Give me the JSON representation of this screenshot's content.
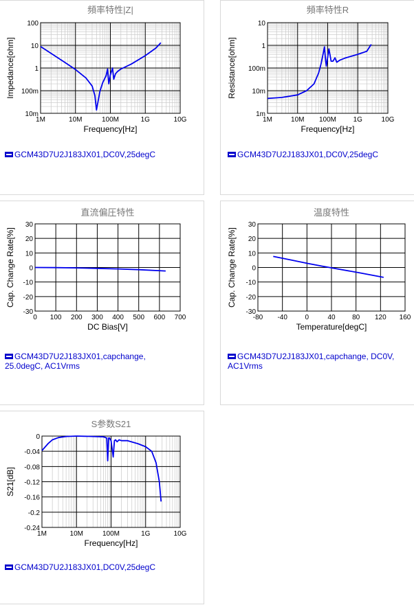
{
  "chart_data": [
    {
      "type": "line",
      "title": "頻率特性|Z|",
      "xlabel": "Frequency[Hz]",
      "ylabel": "Impedance[ohm]",
      "x_scale": "log",
      "y_scale": "log",
      "xlim": [
        1000000,
        10000000000
      ],
      "ylim": [
        0.01,
        100
      ],
      "x_ticks": [
        1000000,
        10000000,
        100000000,
        1000000000,
        10000000000
      ],
      "x_tick_labels": [
        "1M",
        "10M",
        "100M",
        "1G",
        "10G"
      ],
      "y_ticks": [
        0.01,
        0.1,
        1,
        10,
        100
      ],
      "y_tick_labels": [
        "10m",
        "100m",
        "1",
        "10",
        "100"
      ],
      "grid": true,
      "series": [
        {
          "name": "GCM43D7U2J183JX01,DC0V,25degC",
          "color": "#0000ee",
          "x": [
            1000000,
            2000000,
            5000000,
            10000000,
            20000000,
            30000000,
            36000000,
            40000000,
            50000000,
            60000000,
            75000000,
            83000000,
            90000000,
            100000000,
            115000000,
            125000000,
            140000000,
            160000000,
            200000000,
            400000000,
            1000000000,
            2000000000,
            2800000000
          ],
          "values": [
            8.8,
            4.4,
            1.75,
            0.85,
            0.36,
            0.16,
            0.06,
            0.014,
            0.09,
            0.22,
            0.45,
            0.9,
            0.2,
            0.5,
            1.0,
            0.32,
            0.55,
            0.7,
            0.9,
            1.5,
            3.5,
            7.5,
            13
          ]
        }
      ]
    },
    {
      "type": "line",
      "title": "頻率特性R",
      "xlabel": "Frequency[Hz]",
      "ylabel": "Resistance[ohm]",
      "x_scale": "log",
      "y_scale": "log",
      "xlim": [
        1000000,
        10000000000
      ],
      "ylim": [
        0.001,
        10
      ],
      "x_ticks": [
        1000000,
        10000000,
        100000000,
        1000000000,
        10000000000
      ],
      "x_tick_labels": [
        "1M",
        "10M",
        "100M",
        "1G",
        "10G"
      ],
      "y_ticks": [
        0.001,
        0.01,
        0.1,
        1,
        10
      ],
      "y_tick_labels": [
        "1m",
        "10m",
        "100m",
        "1",
        "10"
      ],
      "grid": true,
      "series": [
        {
          "name": "GCM43D7U2J183JX01,DC0V,25degC",
          "color": "#0000ee",
          "x": [
            1000000,
            3000000,
            10000000,
            20000000,
            35000000,
            50000000,
            60000000,
            70000000,
            78000000,
            83000000,
            90000000,
            100000000,
            110000000,
            130000000,
            150000000,
            175000000,
            200000000,
            250000000,
            400000000,
            1000000000,
            2000000000,
            2800000000
          ],
          "values": [
            0.0045,
            0.005,
            0.0065,
            0.01,
            0.02,
            0.06,
            0.15,
            0.4,
            0.85,
            0.3,
            0.12,
            0.3,
            0.7,
            0.2,
            0.2,
            0.28,
            0.18,
            0.22,
            0.28,
            0.4,
            0.55,
            1.1
          ]
        }
      ]
    },
    {
      "type": "line",
      "title": "直流偏圧特性",
      "xlabel": "DC Bias[V]",
      "ylabel": "Cap. Change Rate[%]",
      "xlim": [
        0,
        700
      ],
      "ylim": [
        -30,
        30
      ],
      "x_ticks": [
        0,
        100,
        200,
        300,
        400,
        500,
        600,
        700
      ],
      "x_tick_labels": [
        "0",
        "100",
        "200",
        "300",
        "400",
        "500",
        "600",
        "700"
      ],
      "y_ticks": [
        -30,
        -20,
        -10,
        0,
        10,
        20,
        30
      ],
      "y_tick_labels": [
        "-30",
        "-20",
        "-10",
        "0",
        "10",
        "20",
        "30"
      ],
      "grid": true,
      "series": [
        {
          "name": "GCM43D7U2J183JX01,capchange, 25.0degC, AC1Vrms",
          "color": "#0000ee",
          "x": [
            0,
            100,
            200,
            300,
            400,
            500,
            630
          ],
          "values": [
            0,
            -0.1,
            -0.3,
            -0.6,
            -1.0,
            -1.5,
            -2.4
          ]
        }
      ]
    },
    {
      "type": "line",
      "title": "温度特性",
      "xlabel": "Temperature[degC]",
      "ylabel": "Cap. Change Rate[%]",
      "xlim": [
        -80,
        160
      ],
      "ylim": [
        -30,
        30
      ],
      "x_ticks": [
        -80,
        -40,
        0,
        40,
        80,
        120,
        160
      ],
      "x_tick_labels": [
        "-80",
        "-40",
        "0",
        "40",
        "80",
        "120",
        "160"
      ],
      "y_ticks": [
        -30,
        -20,
        -10,
        0,
        10,
        20,
        30
      ],
      "y_tick_labels": [
        "-30",
        "-20",
        "-10",
        "0",
        "10",
        "20",
        "30"
      ],
      "grid": true,
      "series": [
        {
          "name": "GCM43D7U2J183JX01,capchange, DC0V, AC1Vrms",
          "color": "#0000ee",
          "x": [
            -55,
            -25,
            0,
            25,
            50,
            85,
            125
          ],
          "values": [
            7.6,
            5.1,
            2.9,
            0.9,
            -1.0,
            -3.6,
            -6.8
          ]
        }
      ]
    },
    {
      "type": "line",
      "title": "S参数S21",
      "xlabel": "Frequency[Hz]",
      "ylabel": "S21[dB]",
      "x_scale": "log",
      "xlim": [
        1000000,
        10000000000
      ],
      "ylim": [
        -0.24,
        0
      ],
      "x_ticks": [
        1000000,
        10000000,
        100000000,
        1000000000,
        10000000000
      ],
      "x_tick_labels": [
        "1M",
        "10M",
        "100M",
        "1G",
        "10G"
      ],
      "y_ticks": [
        0,
        -0.04,
        -0.08,
        -0.12,
        -0.16,
        -0.2,
        -0.24
      ],
      "y_tick_labels": [
        "0",
        "-0.04",
        "-0.08",
        "-0.12",
        "-0.16",
        "-0.2",
        "-0.24"
      ],
      "grid": true,
      "series": [
        {
          "name": "GCM43D7U2J183JX01,DC0V,25degC",
          "color": "#0000ee",
          "x": [
            1000000,
            1500000,
            2000000,
            3000000,
            5000000,
            10000000,
            30000000,
            60000000,
            75000000,
            80000000,
            85000000,
            90000000,
            100000000,
            115000000,
            125000000,
            135000000,
            150000000,
            170000000,
            200000000,
            300000000,
            600000000,
            1000000000,
            1500000000,
            2000000000,
            2500000000,
            2800000000
          ],
          "values": [
            -0.038,
            -0.02,
            -0.01,
            -0.004,
            -0.001,
            0,
            -0.001,
            -0.002,
            -0.005,
            -0.065,
            -0.005,
            -0.005,
            -0.012,
            -0.055,
            -0.012,
            -0.01,
            -0.015,
            -0.01,
            -0.012,
            -0.012,
            -0.02,
            -0.028,
            -0.04,
            -0.07,
            -0.12,
            -0.172
          ]
        }
      ]
    }
  ]
}
